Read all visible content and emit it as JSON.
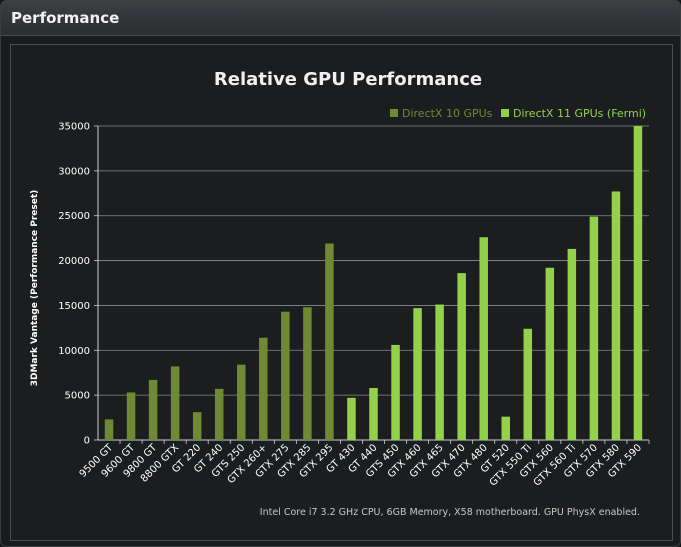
{
  "window": {
    "title": "Performance"
  },
  "chart_data": {
    "type": "bar",
    "title": "Relative GPU Performance",
    "ylabel": "3DMark Vantage (Performance Preset)",
    "xlabel": "",
    "ylim": [
      0,
      35000
    ],
    "yticks": [
      0,
      5000,
      10000,
      15000,
      20000,
      25000,
      30000,
      35000
    ],
    "grid": true,
    "legend_position": "top-right",
    "footnote": "Intel Core i7 3.2 GHz CPU, 6GB Memory, X58 motherboard. GPU PhysX enabled.",
    "categories": [
      "9500 GT",
      "9600 GT",
      "9800 GT",
      "8800 GTX",
      "GT 220",
      "GT 240",
      "GTS 250",
      "GTX 260+",
      "GTX 275",
      "GTX 285",
      "GTX 295",
      "GT 430",
      "GT 440",
      "GTS 450",
      "GTX 460",
      "GTX 465",
      "GTX 470",
      "GTX 480",
      "GT 520",
      "GTX 550 Ti",
      "GTX 560",
      "GTX 560 Ti",
      "GTX 570",
      "GTX 580",
      "GTX 590"
    ],
    "series": [
      {
        "name": "DirectX 10 GPUs",
        "color": "#6f8a35",
        "values": [
          2300,
          5300,
          6700,
          8200,
          3100,
          5700,
          8400,
          11400,
          14300,
          14800,
          21900,
          null,
          null,
          null,
          null,
          null,
          null,
          null,
          null,
          null,
          null,
          null,
          null,
          null,
          null
        ]
      },
      {
        "name": "DirectX 11 GPUs (Fermi)",
        "color": "#93d14b",
        "values": [
          null,
          null,
          null,
          null,
          null,
          null,
          null,
          null,
          null,
          null,
          null,
          4700,
          5800,
          10600,
          14700,
          15100,
          18600,
          22600,
          2600,
          12400,
          19200,
          21300,
          24900,
          27700,
          35000
        ]
      }
    ]
  }
}
